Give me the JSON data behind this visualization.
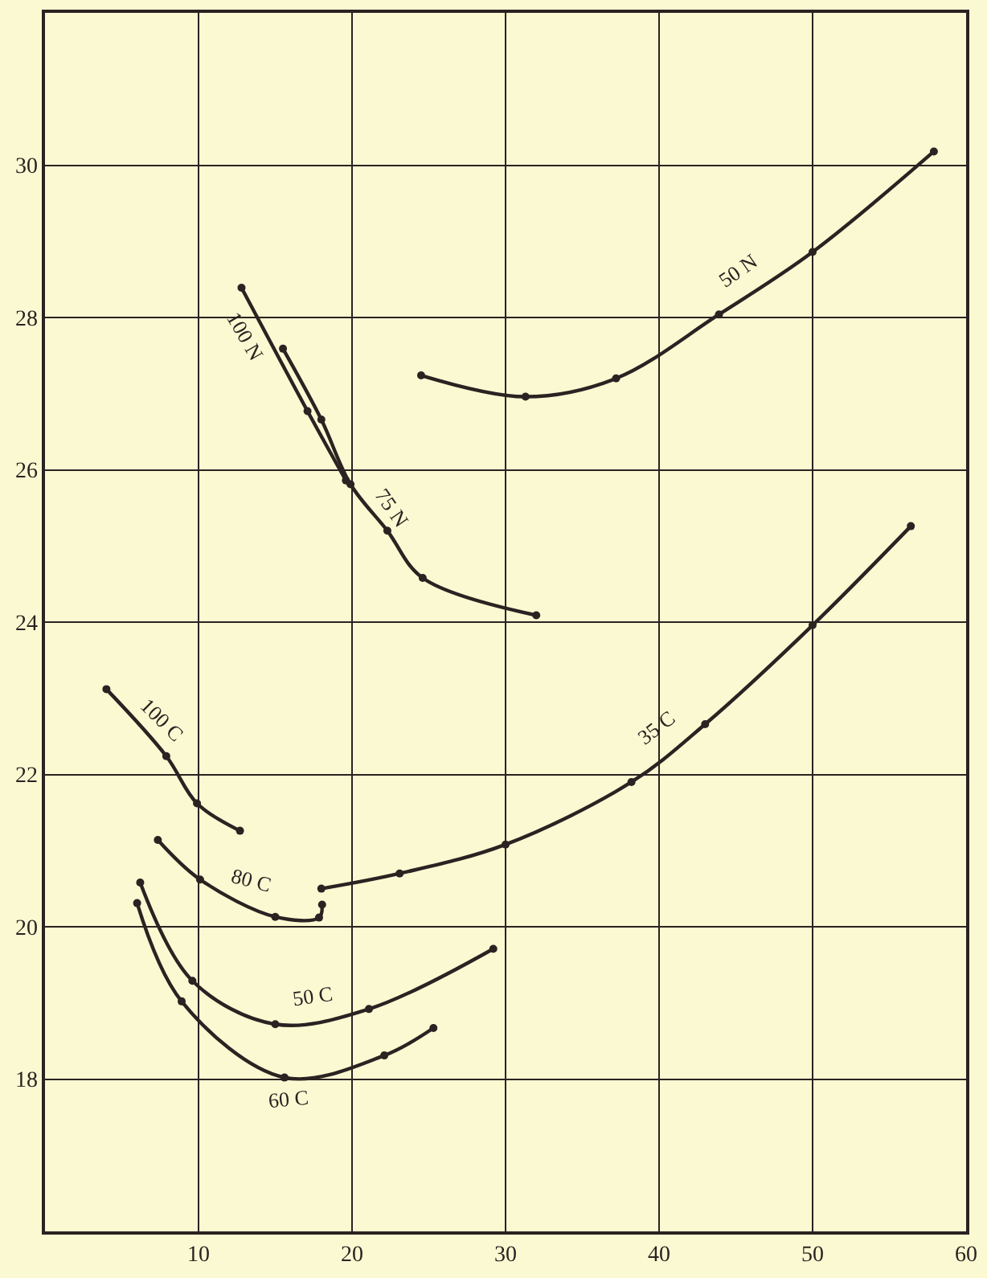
{
  "chart_data": {
    "type": "line",
    "xlim": [
      0,
      60
    ],
    "ylim": [
      16,
      32
    ],
    "xticks": [
      {
        "value": 0,
        "label": null
      },
      10,
      20,
      30,
      40,
      50,
      60
    ],
    "yticks": [
      {
        "value": 16,
        "label": null
      },
      18,
      20,
      22,
      24,
      26,
      28,
      30,
      {
        "value": 32,
        "label": null
      }
    ],
    "grid": true,
    "marker": "circle",
    "line_style": "solid",
    "series": [
      {
        "name": "50 N",
        "color": "#2b2222",
        "x": [
          24.5,
          31.3,
          37.2,
          43.9,
          50.0,
          57.9
        ],
        "values": [
          27.24,
          26.96,
          27.2,
          28.04,
          28.86,
          30.18
        ]
      },
      {
        "name": "100 N",
        "color": "#2b2222",
        "x": [
          12.8,
          17.1,
          19.6
        ],
        "values": [
          28.39,
          26.77,
          25.86
        ]
      },
      {
        "name": "75 N",
        "color": "#2b2222",
        "x": [
          15.5,
          18.0,
          19.9,
          22.3,
          24.6,
          32.0
        ],
        "values": [
          27.59,
          26.66,
          25.81,
          25.2,
          24.58,
          24.09
        ]
      },
      {
        "name": "35 C",
        "color": "#2b2222",
        "x": [
          18.0,
          23.1,
          30.0,
          38.2,
          43.0,
          50.0,
          56.4
        ],
        "values": [
          20.5,
          20.7,
          21.08,
          21.9,
          22.66,
          23.96,
          25.26
        ]
      },
      {
        "name": "100 C",
        "color": "#2b2222",
        "x": [
          4.0,
          7.9,
          9.9,
          12.7
        ],
        "values": [
          23.12,
          22.24,
          21.62,
          21.26
        ]
      },
      {
        "name": "80 C",
        "color": "#2b2222",
        "x": [
          7.35,
          10.1,
          15.0,
          17.85,
          18.05
        ],
        "values": [
          21.14,
          20.62,
          20.13,
          20.12,
          20.29
        ]
      },
      {
        "name": "50 C",
        "color": "#2b2222",
        "x": [
          6.2,
          9.6,
          15.0,
          21.1,
          29.2
        ],
        "values": [
          20.58,
          19.29,
          18.72,
          18.92,
          19.71
        ]
      },
      {
        "name": "60 C",
        "color": "#2b2222",
        "x": [
          6.0,
          8.9,
          15.6,
          22.1,
          25.3
        ],
        "values": [
          20.31,
          19.02,
          18.02,
          18.31,
          18.67
        ]
      }
    ]
  }
}
